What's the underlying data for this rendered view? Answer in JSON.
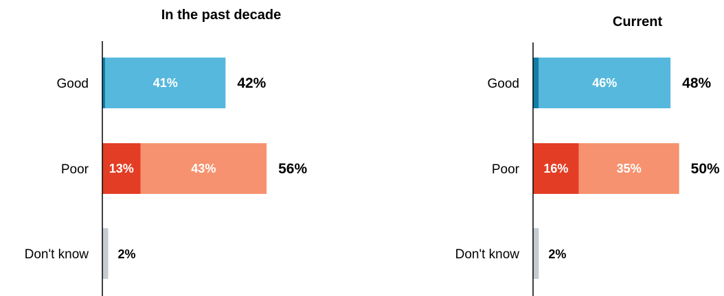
{
  "chart_data": [
    {
      "type": "bar",
      "orientation": "horizontal",
      "stacked": true,
      "title": "In the past decade",
      "categories": [
        "Good",
        "Poor",
        "Don't know"
      ],
      "series": [
        {
          "values": [
            1,
            13,
            2
          ],
          "color": "#127ea8"
        },
        {
          "values": [
            41,
            43,
            0
          ],
          "color": "#56b8dd"
        }
      ],
      "segment_labels": [
        [
          "",
          "41%"
        ],
        [
          "13%",
          "43%"
        ],
        [
          "",
          ""
        ]
      ],
      "totals": [
        "42%",
        "56%",
        "2%"
      ],
      "segment_colors": {
        "Good": [
          "#127ea8",
          "#56b8dd"
        ],
        "Poor": [
          "#e33e25",
          "#f6926f"
        ],
        "Don't know": [
          "#c4cbd1"
        ]
      },
      "xlim": [
        0,
        60
      ],
      "grid": false,
      "legend": "none"
    },
    {
      "type": "bar",
      "orientation": "horizontal",
      "stacked": true,
      "title": "Current",
      "categories": [
        "Good",
        "Poor",
        "Don't know"
      ],
      "series": [
        {
          "values": [
            2,
            16,
            2
          ],
          "color": "#127ea8"
        },
        {
          "values": [
            46,
            35,
            0
          ],
          "color": "#56b8dd"
        }
      ],
      "segment_labels": [
        [
          "",
          "46%"
        ],
        [
          "16%",
          "35%"
        ],
        [
          "",
          ""
        ]
      ],
      "totals": [
        "48%",
        "50%",
        "2%"
      ],
      "segment_colors": {
        "Good": [
          "#127ea8",
          "#56b8dd"
        ],
        "Poor": [
          "#e33e25",
          "#f6926f"
        ],
        "Don't know": [
          "#c4cbd1"
        ]
      },
      "xlim": [
        0,
        60
      ],
      "grid": false,
      "legend": "none"
    }
  ]
}
